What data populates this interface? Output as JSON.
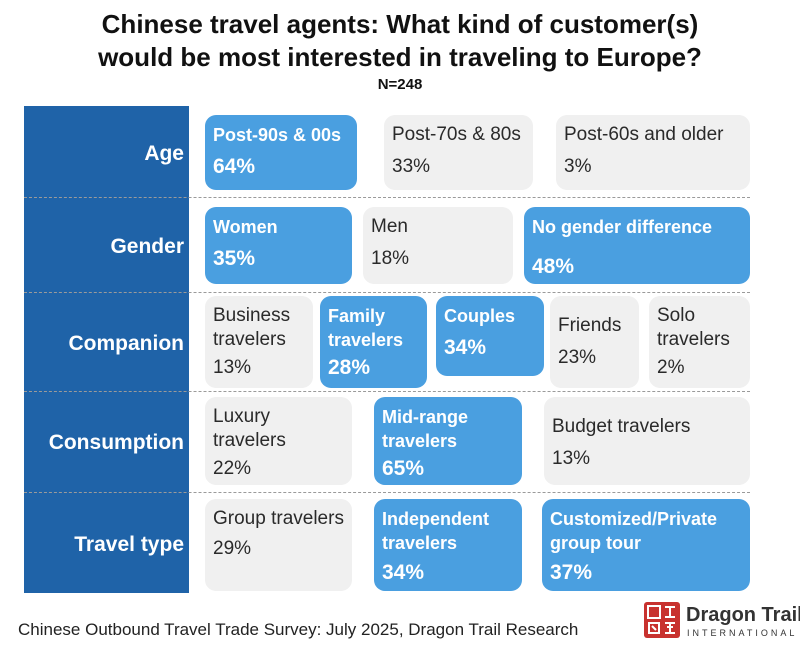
{
  "title_line1": "Chinese travel agents: What kind of customer(s)",
  "title_line2": "would be most interested in traveling to Europe?",
  "subtitle": "N=248",
  "chart_data": {
    "type": "table",
    "rows": [
      {
        "label": "Age",
        "items": [
          {
            "name": "Post-90s & 00s",
            "pct": "64%",
            "value": 64,
            "highlight": true
          },
          {
            "name": "Post-70s & 80s",
            "pct": "33%",
            "value": 33,
            "highlight": false
          },
          {
            "name": "Post-60s and older",
            "pct": "3%",
            "value": 3,
            "highlight": false
          }
        ]
      },
      {
        "label": "Gender",
        "items": [
          {
            "name": "Women",
            "pct": "35%",
            "value": 35,
            "highlight": true
          },
          {
            "name": "Men",
            "pct": "18%",
            "value": 18,
            "highlight": false
          },
          {
            "name": "No gender difference",
            "pct": "48%",
            "value": 48,
            "highlight": true
          }
        ]
      },
      {
        "label": "Companion",
        "items": [
          {
            "name": "Business travelers",
            "pct": "13%",
            "value": 13,
            "highlight": false
          },
          {
            "name": "Family travelers",
            "pct": "28%",
            "value": 28,
            "highlight": true
          },
          {
            "name": "Couples",
            "pct": "34%",
            "value": 34,
            "highlight": true
          },
          {
            "name": "Friends",
            "pct": "23%",
            "value": 23,
            "highlight": false
          },
          {
            "name": "Solo travelers",
            "pct": "2%",
            "value": 2,
            "highlight": false
          }
        ]
      },
      {
        "label": "Consumption",
        "items": [
          {
            "name": "Luxury travelers",
            "pct": "22%",
            "value": 22,
            "highlight": false
          },
          {
            "name": "Mid-range travelers",
            "pct": "65%",
            "value": 65,
            "highlight": true
          },
          {
            "name": "Budget travelers",
            "pct": "13%",
            "value": 13,
            "highlight": false
          }
        ]
      },
      {
        "label": "Travel type",
        "items": [
          {
            "name": "Group travelers",
            "pct": "29%",
            "value": 29,
            "highlight": false
          },
          {
            "name": "Independent travelers",
            "pct": "34%",
            "value": 34,
            "highlight": true
          },
          {
            "name": "Customized/Private group tour",
            "pct": "37%",
            "value": 37,
            "highlight": true
          }
        ]
      }
    ]
  },
  "colors": {
    "row_panel": "#1f63a8",
    "highlight_box": "#4a9fe0",
    "plain_box": "#f0f0f0"
  },
  "source": "Chinese Outbound Travel Trade Survey: July 2025, Dragon Trail Research",
  "logo": {
    "name": "Dragon Trail",
    "sub": "INTERNATIONAL",
    "icon": "dragon-trail-seal-icon"
  }
}
